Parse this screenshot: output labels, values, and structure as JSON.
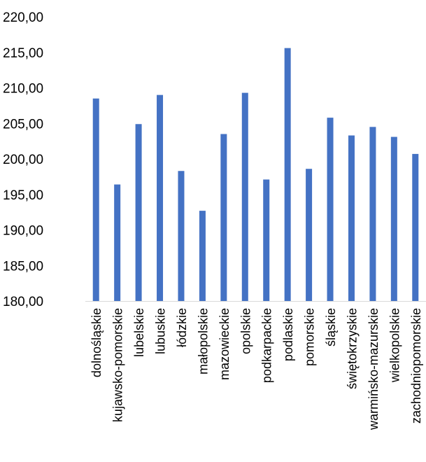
{
  "chart_data": {
    "type": "bar",
    "title": "",
    "xlabel": "",
    "ylabel": "",
    "ylim": [
      180,
      220
    ],
    "y_ticks": [
      "180,00",
      "185,00",
      "190,00",
      "195,00",
      "200,00",
      "205,00",
      "210,00",
      "215,00",
      "220,00"
    ],
    "grid": false,
    "categories": [
      "dolnośląskie",
      "kujawsko-pomorskie",
      "lubelskie",
      "lubuskie",
      "łódzkie",
      "małopolskie",
      "mazowieckie",
      "opolskie",
      "podkarpackie",
      "podlaskie",
      "pomorskie",
      "śląskie",
      "świętokrzyskie",
      "warmińsko-mazurskie",
      "wielkopolskie",
      "zachodniopomorskie"
    ],
    "values": [
      208.5,
      196.4,
      204.9,
      209.0,
      198.3,
      192.7,
      203.5,
      209.3,
      197.1,
      215.6,
      198.6,
      205.8,
      203.3,
      204.5,
      203.1,
      200.7
    ],
    "bar_color": "#4472C4"
  }
}
